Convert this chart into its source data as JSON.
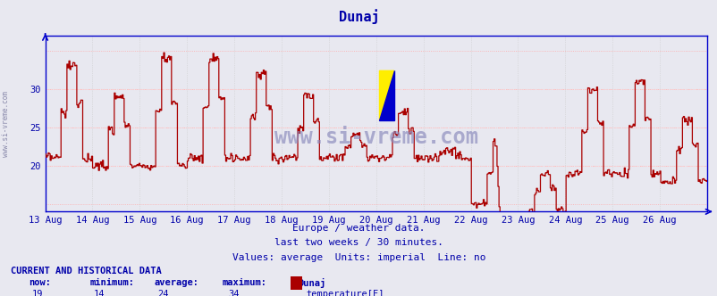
{
  "title": "Dunaj",
  "bg_color": "#e8e8f0",
  "plot_bg_color": "#e8e8f0",
  "line_color": "#aa0000",
  "grid_color_major": "#ffffff",
  "grid_color_minor": "#ffdddd",
  "axis_color": "#0000cc",
  "text_color": "#0000aa",
  "x_labels": [
    "13 Aug",
    "14 Aug",
    "15 Aug",
    "16 Aug",
    "17 Aug",
    "18 Aug",
    "19 Aug",
    "20 Aug",
    "21 Aug",
    "22 Aug",
    "23 Aug",
    "24 Aug",
    "25 Aug",
    "26 Aug"
  ],
  "ylim": [
    14,
    37
  ],
  "yticks": [
    20,
    25,
    30
  ],
  "subtitle1": "Europe / weather data.",
  "subtitle2": "last two weeks / 30 minutes.",
  "subtitle3": "Values: average  Units: imperial  Line: no",
  "footer_header": "CURRENT AND HISTORICAL DATA",
  "footer_labels": [
    "now:",
    "minimum:",
    "average:",
    "maximum:",
    "Dunaj"
  ],
  "footer_values": [
    "19",
    "14",
    "24",
    "34"
  ],
  "footer_series": "temperature[F]",
  "watermark": "www.si-vreme.com",
  "side_text": "www.si-vreme.com"
}
